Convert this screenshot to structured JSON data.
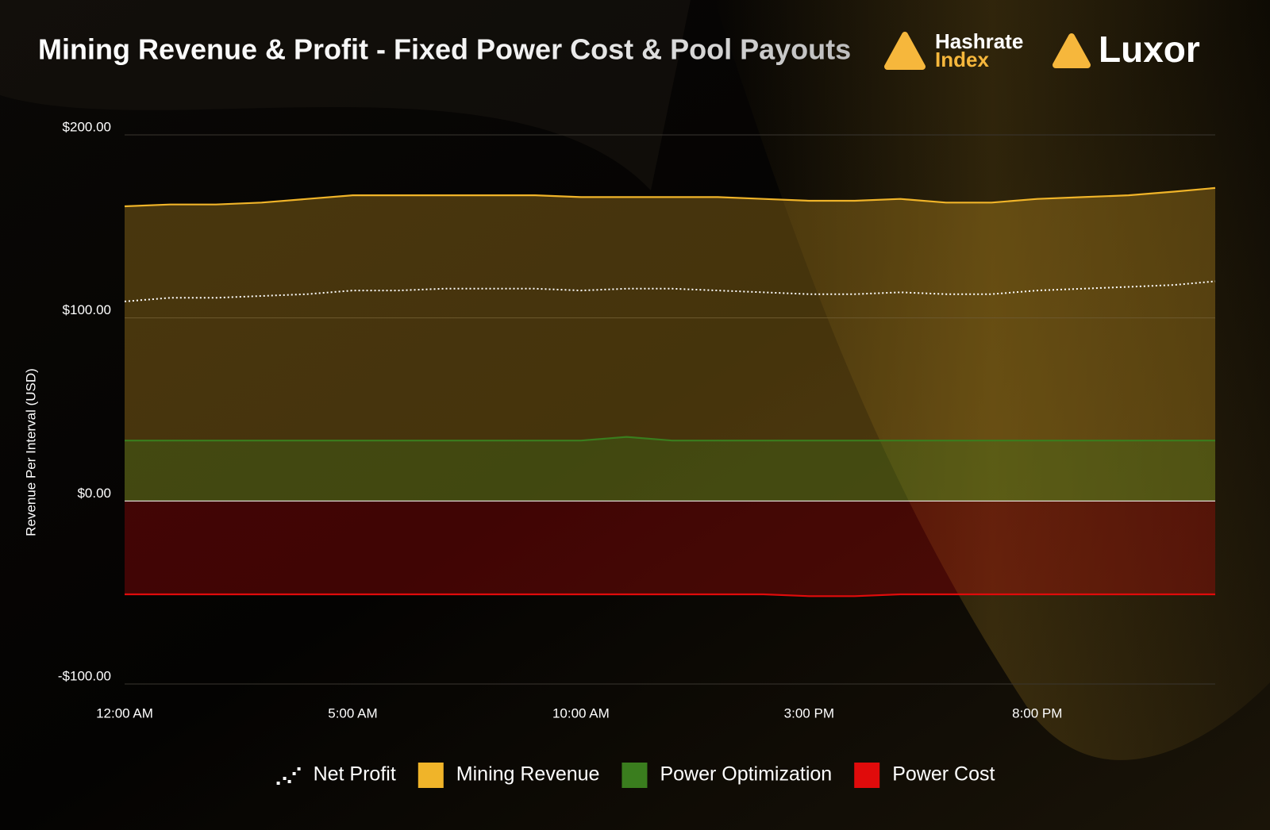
{
  "chart_data": {
    "type": "line",
    "title": "Mining Revenue & Profit - Fixed Power Cost & Pool Payouts",
    "brands": [
      "Hashrate",
      "Index",
      "Luxor"
    ],
    "y_label": "Revenue Per Interval (USD)",
    "x": [
      0,
      1,
      2,
      3,
      4,
      5,
      6,
      7,
      8,
      9,
      10,
      11,
      12,
      13,
      14,
      15,
      16,
      17,
      18,
      19,
      20,
      21,
      22,
      23,
      23.9
    ],
    "xlim": [
      0,
      23.9
    ],
    "xticks": [
      {
        "value": 0,
        "label": "12:00 AM"
      },
      {
        "value": 5,
        "label": "5:00 AM"
      },
      {
        "value": 10,
        "label": "10:00 AM"
      },
      {
        "value": 15,
        "label": "3:00 PM"
      },
      {
        "value": 20,
        "label": "8:00 PM"
      }
    ],
    "ylim": [
      -100,
      200
    ],
    "yticks": [
      {
        "value": -100,
        "label": "-$100.00"
      },
      {
        "value": 0,
        "label": "$0.00"
      },
      {
        "value": 100,
        "label": "$100.00"
      },
      {
        "value": 200,
        "label": "$200.00"
      }
    ],
    "grid": true,
    "legend": "bottom",
    "series": [
      {
        "name": "Net Profit",
        "kind": "dotted",
        "color": "#ffffff",
        "values": [
          109,
          111,
          111,
          112,
          113,
          115,
          115,
          116,
          116,
          116,
          115,
          116,
          116,
          115,
          114,
          113,
          113,
          114,
          113,
          113,
          115,
          116,
          117,
          118,
          120
        ]
      },
      {
        "name": "Mining Revenue",
        "kind": "area",
        "color": "#f0b429",
        "values": [
          161,
          162,
          162,
          163,
          165,
          167,
          167,
          167,
          167,
          167,
          166,
          166,
          166,
          166,
          165,
          164,
          164,
          165,
          163,
          163,
          165,
          166,
          167,
          169,
          171
        ]
      },
      {
        "name": "Power Optimization",
        "kind": "area",
        "color": "#3a7d1e",
        "values": [
          33,
          33,
          33,
          33,
          33,
          33,
          33,
          33,
          33,
          33,
          33,
          35,
          33,
          33,
          33,
          33,
          33,
          33,
          33,
          33,
          33,
          33,
          33,
          33,
          33
        ]
      },
      {
        "name": "Power Cost",
        "kind": "area",
        "color": "#e00b0b",
        "values": [
          -51,
          -51,
          -51,
          -51,
          -51,
          -51,
          -51,
          -51,
          -51,
          -51,
          -51,
          -51,
          -51,
          -51,
          -51,
          -52,
          -52,
          -51,
          -51,
          -51,
          -51,
          -51,
          -51,
          -51,
          -51
        ]
      }
    ]
  }
}
